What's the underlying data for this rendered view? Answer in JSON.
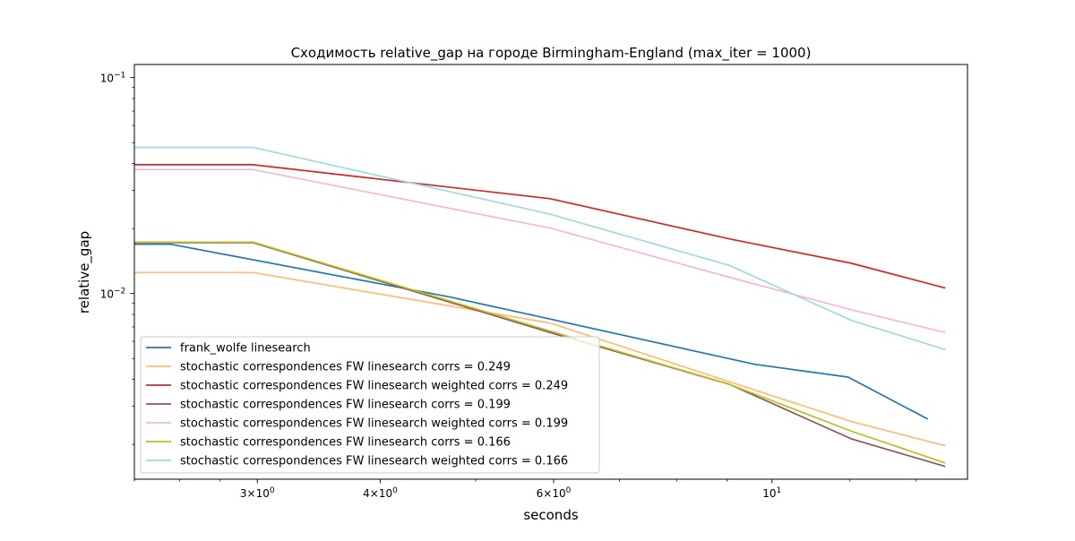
{
  "chart_data": {
    "type": "line",
    "title": "Сходимость relative_gap на городе Birmingham-England  (max_iter = 1000)",
    "xlabel": "seconds",
    "ylabel": "relative_gap",
    "xscale": "log",
    "yscale": "log",
    "xlim": [
      2.25,
      15.8
    ],
    "ylim": [
      0.00138,
      0.115
    ],
    "grid": false,
    "legend_position": "lower-left",
    "x_tick_labels": [
      {
        "value": 3,
        "base": "3",
        "times": "×",
        "exp_base": "10",
        "exp": "0"
      },
      {
        "value": 4,
        "base": "4",
        "times": "×",
        "exp_base": "10",
        "exp": "0"
      },
      {
        "value": 6,
        "base": "6",
        "times": "×",
        "exp_base": "10",
        "exp": "0"
      },
      {
        "value": 10,
        "base": "",
        "times": "",
        "exp_base": "10",
        "exp": "1"
      }
    ],
    "y_tick_labels": [
      {
        "value": 0.1,
        "base": "10",
        "exp": "−1"
      },
      {
        "value": 0.01,
        "base": "10",
        "exp": "−2"
      }
    ],
    "series": [
      {
        "name": "frank_wolfe linesearch",
        "color": "#1f77b4",
        "points": [
          [
            2.25,
            0.0169
          ],
          [
            2.45,
            0.0169
          ],
          [
            4.7,
            0.00965
          ],
          [
            6.0,
            0.00755
          ],
          [
            9.6,
            0.0047
          ],
          [
            11.95,
            0.0041
          ],
          [
            14.4,
            0.00262
          ]
        ]
      },
      {
        "name": "stochastic correspondences FW linesearch corrs = 0.249",
        "color": "#ffbb78",
        "points": [
          [
            2.25,
            0.0125
          ],
          [
            2.97,
            0.0125
          ],
          [
            5.95,
            0.0073
          ],
          [
            9.05,
            0.0039
          ],
          [
            12.05,
            0.00255
          ],
          [
            15.0,
            0.00197
          ]
        ]
      },
      {
        "name": "stochastic correspondences FW linesearch weighted corrs = 0.249",
        "color": "#d62728",
        "points": [
          [
            2.25,
            0.0395
          ],
          [
            2.97,
            0.0395
          ],
          [
            5.95,
            0.0275
          ],
          [
            9.05,
            0.0179
          ],
          [
            12.05,
            0.0138
          ],
          [
            15.0,
            0.0106
          ]
        ]
      },
      {
        "name": "stochastic correspondences FW linesearch corrs = 0.199",
        "color": "#8c564b",
        "points": [
          [
            2.25,
            0.0172
          ],
          [
            2.97,
            0.0172
          ],
          [
            5.95,
            0.0066
          ],
          [
            9.05,
            0.0038
          ],
          [
            12.05,
            0.00212
          ],
          [
            15.0,
            0.00158
          ]
        ]
      },
      {
        "name": "stochastic correspondences FW linesearch weighted corrs = 0.199",
        "color": "#f7b6d2",
        "points": [
          [
            2.25,
            0.0375
          ],
          [
            2.97,
            0.0375
          ],
          [
            5.95,
            0.0201
          ],
          [
            9.05,
            0.0119
          ],
          [
            12.05,
            0.0084
          ],
          [
            15.0,
            0.0066
          ]
        ]
      },
      {
        "name": "stochastic correspondences FW linesearch corrs = 0.166",
        "color": "#bcbd22",
        "points": [
          [
            2.25,
            0.0173
          ],
          [
            2.97,
            0.0173
          ],
          [
            5.95,
            0.0067
          ],
          [
            9.05,
            0.0038
          ],
          [
            12.05,
            0.0023
          ],
          [
            15.0,
            0.00164
          ]
        ]
      },
      {
        "name": "stochastic correspondences FW linesearch weighted corrs = 0.166",
        "color": "#9edae5",
        "points": [
          [
            2.25,
            0.0475
          ],
          [
            2.97,
            0.0475
          ],
          [
            5.95,
            0.0233
          ],
          [
            9.05,
            0.0135
          ],
          [
            12.05,
            0.0075
          ],
          [
            15.0,
            0.0055
          ]
        ]
      }
    ]
  }
}
